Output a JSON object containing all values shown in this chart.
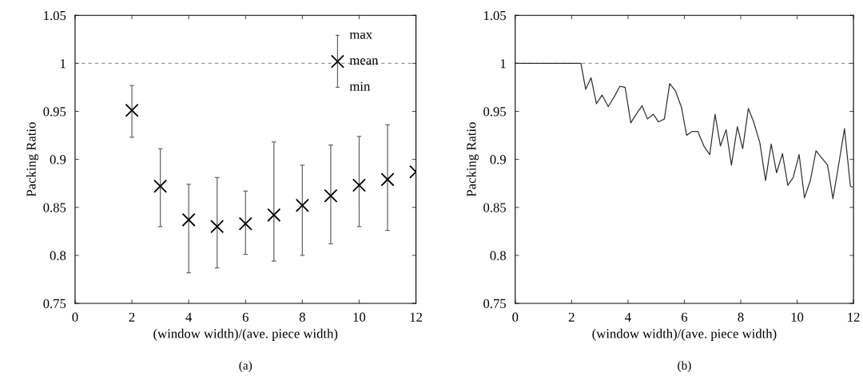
{
  "chart_data": [
    {
      "type": "scatter",
      "xlabel": "(window width)/(ave. piece width)",
      "ylabel": "Packing Ratio",
      "x": [
        2,
        3,
        4,
        5,
        6,
        7,
        8,
        9,
        10,
        11,
        12
      ],
      "series": [
        {
          "color": "#000000",
          "values": [
            0.951,
            0.872,
            0.837,
            0.83,
            0.833,
            0.842,
            0.852,
            0.862,
            0.873,
            0.879,
            0.887
          ],
          "errors": [
            [
              0.923,
              0.977
            ],
            [
              0.83,
              0.911
            ],
            [
              0.782,
              0.874
            ],
            [
              0.787,
              0.881
            ],
            [
              0.801,
              0.867
            ],
            [
              0.794,
              0.918
            ],
            [
              0.8,
              0.894
            ],
            [
              0.812,
              0.915
            ],
            [
              0.83,
              0.924
            ],
            [
              0.826,
              0.936
            ],
            null
          ]
        }
      ],
      "marker": "cross",
      "xlim": [
        0,
        12
      ],
      "xticks": [
        0,
        2,
        4,
        6,
        8,
        10,
        12
      ],
      "ylim": [
        0.75,
        1.05
      ],
      "yticks": [
        0.75,
        0.8,
        0.85,
        0.9,
        0.95,
        {
          "value": 1,
          "label": "1"
        },
        1.05
      ],
      "ref_lines": [
        {
          "axis": "y",
          "value": 1,
          "color": "#999999",
          "line_style": "dashed"
        }
      ],
      "annotations": [
        "max",
        "mean",
        "min",
        "(a)"
      ],
      "grid": false,
      "legend": false
    },
    {
      "type": "line",
      "xlabel": "(window width)/(ave. piece width)",
      "ylabel": "Packing Ratio",
      "x": [
        0,
        2.33,
        2.5,
        2.69,
        2.88,
        3.08,
        3.3,
        3.49,
        3.71,
        3.9,
        4.1,
        4.29,
        4.5,
        4.69,
        4.9,
        5.08,
        5.29,
        5.48,
        5.69,
        5.9,
        6.08,
        6.27,
        6.48,
        6.69,
        6.9,
        7.09,
        7.28,
        7.48,
        7.67,
        7.88,
        8.07,
        8.27,
        8.46,
        8.68,
        8.88,
        9.08,
        9.27,
        9.48,
        9.67,
        9.86,
        10.07,
        10.26,
        10.47,
        10.67,
        11.08,
        11.27,
        11.46,
        11.68,
        11.89,
        11.96
      ],
      "series": [
        {
          "color": "#333333",
          "values": [
            1,
            1,
            0.973,
            0.985,
            0.958,
            0.967,
            0.955,
            0.964,
            0.976,
            0.975,
            0.938,
            0.947,
            0.956,
            0.942,
            0.947,
            0.939,
            0.942,
            0.979,
            0.971,
            0.954,
            0.925,
            0.929,
            0.929,
            0.914,
            0.905,
            0.947,
            0.914,
            0.931,
            0.894,
            0.934,
            0.911,
            0.953,
            0.939,
            0.917,
            0.878,
            0.916,
            0.886,
            0.906,
            0.873,
            0.881,
            0.905,
            0.86,
            0.878,
            0.909,
            0.894,
            0.859,
            0.892,
            0.932,
            0.872,
            0.871
          ]
        }
      ],
      "marker": "none",
      "line_style": "solid",
      "xlim": [
        0,
        12
      ],
      "xticks": [
        0,
        2,
        4,
        6,
        8,
        10,
        12
      ],
      "ylim": [
        0.75,
        1.05
      ],
      "yticks": [
        0.75,
        0.8,
        0.85,
        0.9,
        0.95,
        {
          "value": 1,
          "label": "1"
        },
        1.05
      ],
      "ref_lines": [
        {
          "axis": "y",
          "value": 1,
          "color": "#999999",
          "line_style": "dashed"
        }
      ],
      "annotations": [
        "(b)"
      ],
      "grid": false,
      "legend": false
    }
  ]
}
